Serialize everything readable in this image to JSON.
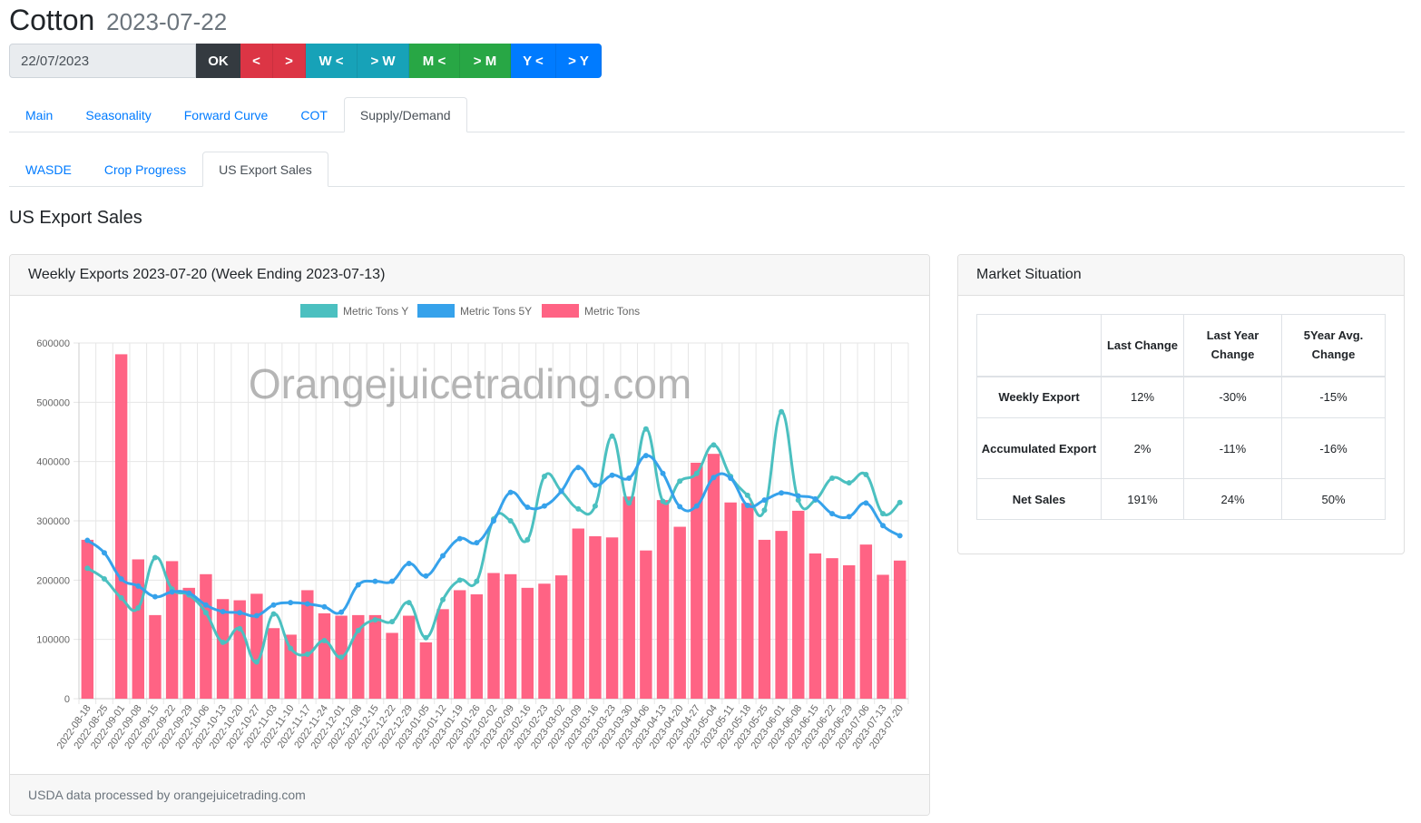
{
  "header": {
    "commodity": "Cotton",
    "date": "2023-07-22"
  },
  "controls": {
    "date_value": "22/07/2023",
    "ok_label": "OK",
    "buttons": [
      "<",
      ">",
      "W <",
      "> W",
      "M <",
      "> M",
      "Y <",
      "> Y"
    ]
  },
  "tabs_main": [
    "Main",
    "Seasonality",
    "Forward Curve",
    "COT",
    "Supply/Demand"
  ],
  "tabs_sub": [
    "WASDE",
    "Crop Progress",
    "US Export Sales"
  ],
  "section_title": "US Export Sales",
  "chart_card": {
    "title": "Weekly Exports 2023-07-20 (Week Ending 2023-07-13)",
    "footer": "USDA data processed by orangejuicetrading.com",
    "watermark": "Orangejuicetrading.com"
  },
  "chart_data": {
    "type": "bar",
    "x": [
      "2022-08-18",
      "2022-08-25",
      "2022-09-01",
      "2022-09-08",
      "2022-09-15",
      "2022-09-22",
      "2022-09-29",
      "2022-10-06",
      "2022-10-13",
      "2022-10-20",
      "2022-10-27",
      "2022-11-03",
      "2022-11-10",
      "2022-11-17",
      "2022-11-24",
      "2022-12-01",
      "2022-12-08",
      "2022-12-15",
      "2022-12-22",
      "2022-12-29",
      "2023-01-05",
      "2023-01-12",
      "2023-01-19",
      "2023-01-26",
      "2023-02-02",
      "2023-02-09",
      "2023-02-16",
      "2023-02-23",
      "2023-03-02",
      "2023-03-09",
      "2023-03-16",
      "2023-03-23",
      "2023-03-30",
      "2023-04-06",
      "2023-04-13",
      "2023-04-20",
      "2023-04-27",
      "2023-05-04",
      "2023-05-11",
      "2023-05-18",
      "2023-05-25",
      "2023-06-01",
      "2023-06-08",
      "2023-06-15",
      "2023-06-22",
      "2023-06-29",
      "2023-07-06",
      "2023-07-13",
      "2023-07-20"
    ],
    "ylim": [
      0,
      600000
    ],
    "yticks": [
      0,
      100000,
      200000,
      300000,
      400000,
      500000,
      600000
    ],
    "legend_position": "top",
    "series": [
      {
        "name": "Metric Tons Y",
        "kind": "line",
        "color": "#4bc0c0",
        "values": [
          220000,
          202000,
          170000,
          153000,
          238000,
          185000,
          175000,
          145000,
          95000,
          118000,
          62000,
          143000,
          85000,
          75000,
          98000,
          70000,
          115000,
          133000,
          130000,
          162000,
          103000,
          167000,
          200000,
          198000,
          303000,
          300000,
          268000,
          375000,
          350000,
          320000,
          325000,
          443000,
          330000,
          455000,
          333000,
          367000,
          380000,
          428000,
          375000,
          343000,
          318000,
          484000,
          335000,
          335000,
          372000,
          364000,
          378000,
          312000,
          331000
        ]
      },
      {
        "name": "Metric Tons 5Y",
        "kind": "line",
        "color": "#36a2eb",
        "values": [
          267000,
          246000,
          202000,
          190000,
          172000,
          180000,
          178000,
          158000,
          147000,
          145000,
          140000,
          158000,
          162000,
          160000,
          155000,
          146000,
          192000,
          198000,
          198000,
          228000,
          207000,
          241000,
          270000,
          263000,
          300000,
          348000,
          323000,
          325000,
          350000,
          390000,
          360000,
          377000,
          372000,
          410000,
          380000,
          324000,
          325000,
          373000,
          372000,
          326000,
          335000,
          347000,
          342000,
          337000,
          312000,
          307000,
          330000,
          292000,
          275000
        ]
      },
      {
        "name": "Metric Tons",
        "kind": "bar",
        "color": "#ff6384",
        "values": [
          268000,
          0,
          581000,
          235000,
          141000,
          232000,
          187000,
          210000,
          168000,
          166000,
          177000,
          119000,
          108000,
          183000,
          144000,
          140000,
          141000,
          141000,
          111000,
          140000,
          95000,
          151000,
          183000,
          176000,
          212000,
          210000,
          187000,
          194000,
          208000,
          287000,
          274000,
          272000,
          341000,
          250000,
          335000,
          290000,
          398000,
          413000,
          331000,
          330000,
          268000,
          283000,
          317000,
          245000,
          237000,
          225000,
          260000,
          209000,
          233000
        ]
      }
    ]
  },
  "market": {
    "title": "Market Situation",
    "columns": [
      "",
      "Last Change",
      "Last Year Change",
      "5Year Avg. Change"
    ],
    "rows": [
      {
        "label": "Weekly Export",
        "values": [
          "12%",
          "-30%",
          "-15%"
        ]
      },
      {
        "label": "Accumulated Export",
        "values": [
          "2%",
          "-11%",
          "-16%"
        ]
      },
      {
        "label": "Net Sales",
        "values": [
          "191%",
          "24%",
          "50%"
        ]
      }
    ]
  }
}
